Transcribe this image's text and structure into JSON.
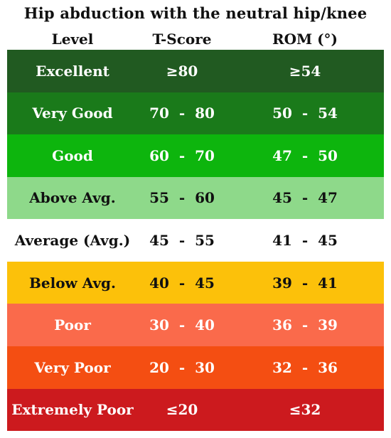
{
  "title": "Hip abduction with the neutral hip/knee",
  "columns": {
    "level": "Level",
    "tscore": "T-Score",
    "rom": "ROM (°)"
  },
  "rows": [
    {
      "level": "Excellent",
      "tscore": "≥80",
      "rom": "≥54",
      "bg": "#215a21",
      "fg": "#ffffff"
    },
    {
      "level": "Very Good",
      "tscore": "70  -  80",
      "rom": "50  -  54",
      "bg": "#1a7a1a",
      "fg": "#ffffff"
    },
    {
      "level": "Good",
      "tscore": "60  -  70",
      "rom": "47  -  50",
      "bg": "#0db50d",
      "fg": "#ffffff"
    },
    {
      "level": "Above Avg.",
      "tscore": "55  -  60",
      "rom": "45  -  47",
      "bg": "#8ed98a",
      "fg": "#111111"
    },
    {
      "level": "Average (Avg.)",
      "tscore": "45  -  55",
      "rom": "41  -  45",
      "bg": "#ffffff",
      "fg": "#111111"
    },
    {
      "level": "Below Avg.",
      "tscore": "40  -  45",
      "rom": "39  -  41",
      "bg": "#fcc10a",
      "fg": "#111111"
    },
    {
      "level": "Poor",
      "tscore": "30  -  40",
      "rom": "36  -  39",
      "bg": "#fa6a4b",
      "fg": "#ffffff"
    },
    {
      "level": "Very Poor",
      "tscore": "20  -  30",
      "rom": "32  -  36",
      "bg": "#f44e12",
      "fg": "#ffffff"
    },
    {
      "level": "Extremely Poor",
      "tscore": "≤20",
      "rom": "≤32",
      "bg": "#cc1a1e",
      "fg": "#ffffff"
    }
  ]
}
